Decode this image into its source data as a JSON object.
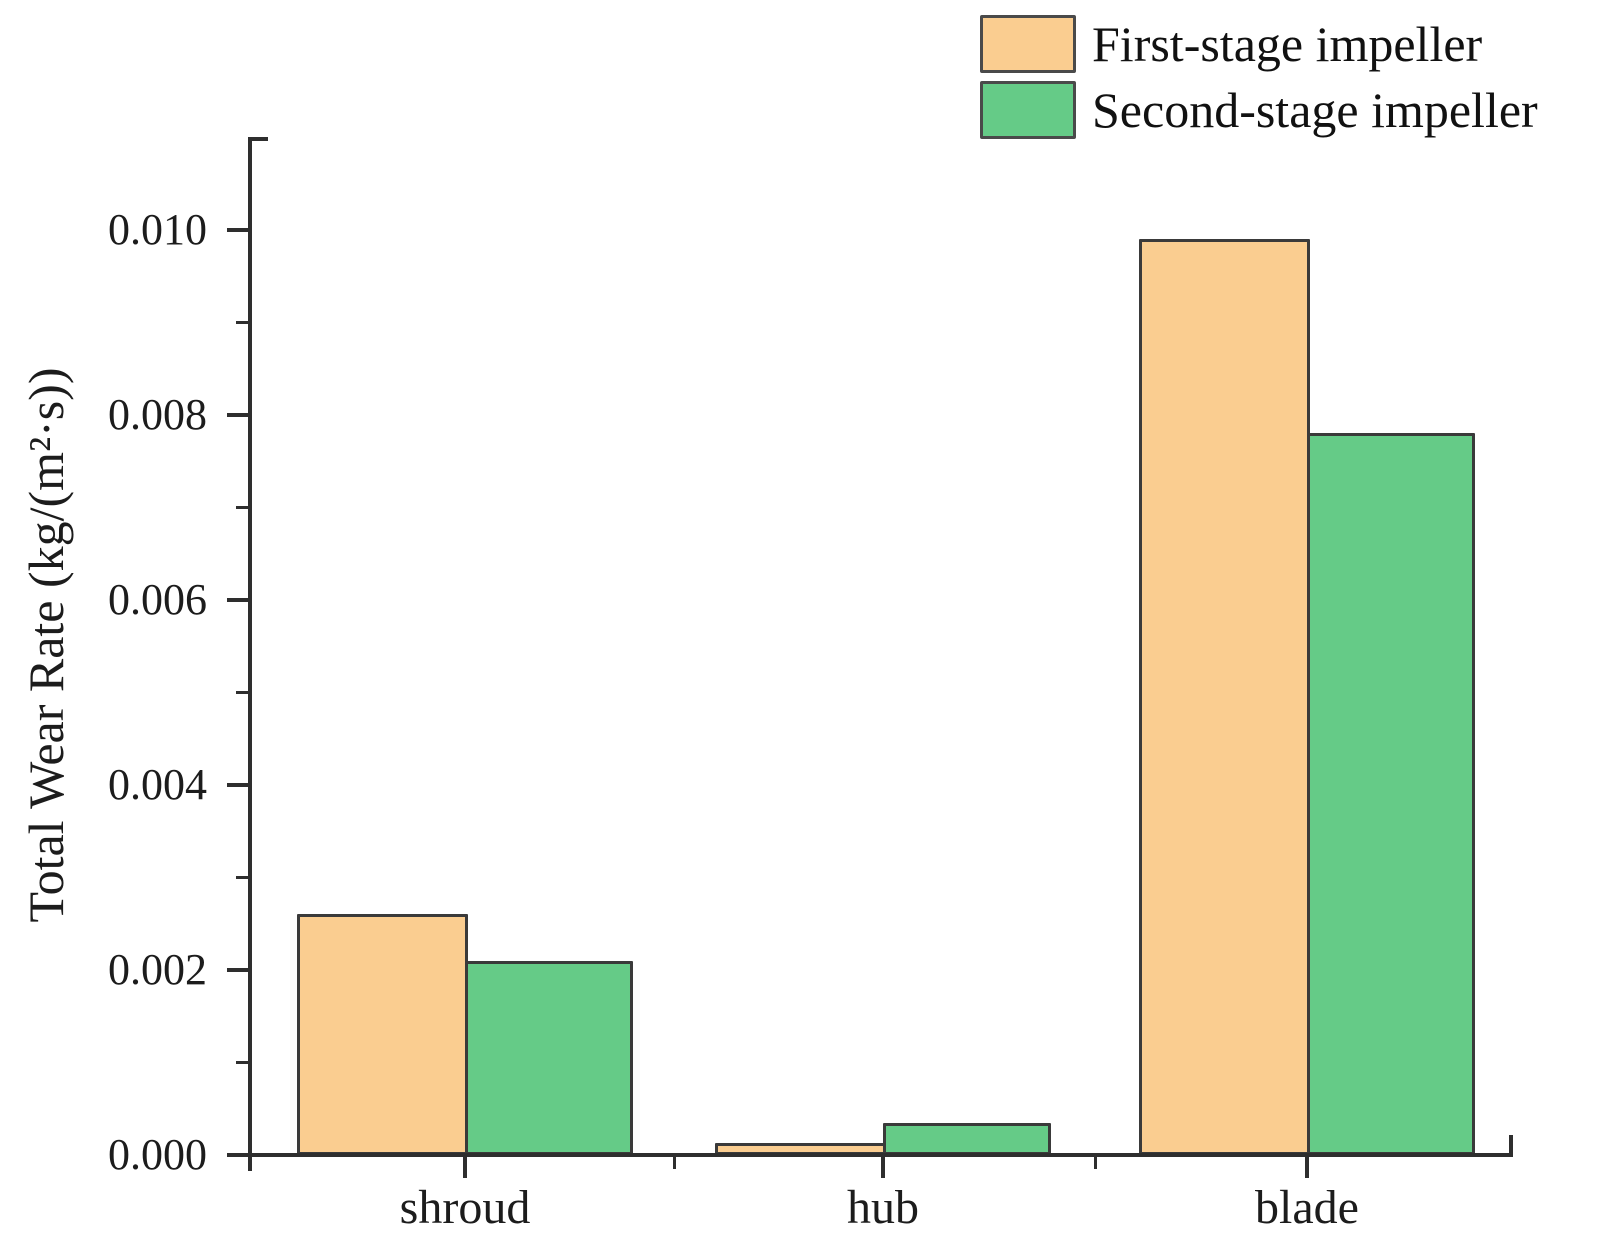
{
  "chart_data": {
    "type": "bar",
    "title": "",
    "xlabel": "",
    "ylabel": "Total Wear Rate (kg/(m²·s))",
    "categories": [
      "shroud",
      "hub",
      "blade"
    ],
    "series": [
      {
        "name": "First-stage impeller",
        "color": "#FACD90",
        "values": [
          0.0026,
          0.00013,
          0.0099
        ]
      },
      {
        "name": "Second-stage impeller",
        "color": "#65CB87",
        "values": [
          0.0021,
          0.00035,
          0.0078
        ]
      }
    ],
    "ylim": [
      0,
      0.011
    ],
    "yticks": [
      0,
      0.002,
      0.004,
      0.006,
      0.008,
      0.01
    ],
    "ytick_labels": [
      "0.000",
      "0.002",
      "0.004",
      "0.006",
      "0.008",
      "0.010"
    ],
    "minor_yticks": [
      0.001,
      0.003,
      0.005,
      0.007,
      0.009
    ],
    "grid": false,
    "legend_position": "top-right",
    "bar_border_color": "#3a3a3a",
    "axis_color": "#2e2e2e"
  }
}
